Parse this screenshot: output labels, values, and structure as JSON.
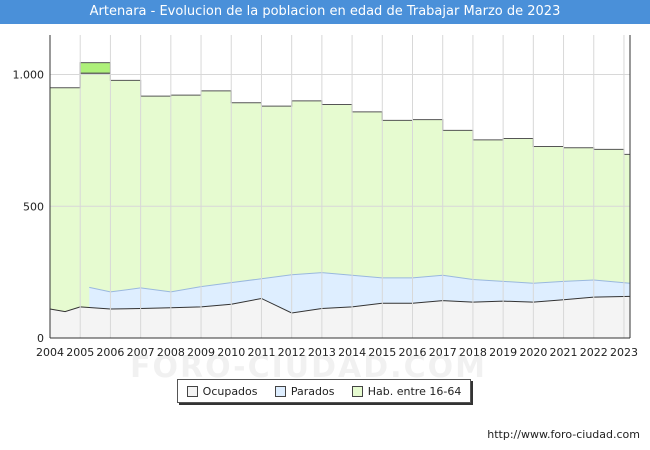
{
  "header": {
    "title": "Artenara - Evolucion de la poblacion en edad de Trabajar Marzo de 2023"
  },
  "footer": {
    "url": "http://www.foro-ciudad.com"
  },
  "watermark": {
    "text": "FORO-CIUDAD.COM"
  },
  "colors": {
    "title_bg": "#4a90d9",
    "hab_fill": "#e6fbd0",
    "hab_line": "#555555",
    "hab_spike_fill": "#aef07a",
    "parados_fill": "#deeeff",
    "ocupados_fill": "#f4f4f4",
    "ocupados_line": "#333333",
    "parados_line": "#9ab8de",
    "grid": "#d8d8d8"
  },
  "legend": [
    {
      "label": "Ocupados",
      "color": "#f4f4f4"
    },
    {
      "label": "Parados",
      "color": "#deeeff"
    },
    {
      "label": "Hab. entre 16-64",
      "color": "#e6fbd0"
    }
  ],
  "chart_data": {
    "type": "area",
    "title": "Artenara - Evolucion de la poblacion en edad de Trabajar Marzo de 2023",
    "xlabel": "",
    "ylabel": "",
    "xlim": [
      2004,
      2023.2
    ],
    "ylim": [
      0,
      1150
    ],
    "x_ticks": [
      "2004",
      "2005",
      "2006",
      "2007",
      "2008",
      "2009",
      "2010",
      "2011",
      "2012",
      "2013",
      "2014",
      "2015",
      "2016",
      "2017",
      "2018",
      "2019",
      "2020",
      "2021",
      "2022",
      "2023"
    ],
    "y_ticks": [
      {
        "value": 0,
        "label": "0"
      },
      {
        "value": 500,
        "label": "500"
      },
      {
        "value": 1000,
        "label": "1.000"
      }
    ],
    "grid": true,
    "series": [
      {
        "name": "Hab. entre 16-64",
        "step": true,
        "x": [
          2004,
          2005,
          2006,
          2007,
          2008,
          2009,
          2010,
          2011,
          2012,
          2013,
          2014,
          2015,
          2016,
          2017,
          2018,
          2019,
          2020,
          2021,
          2022,
          2023
        ],
        "values": [
          950,
          1005,
          978,
          918,
          922,
          938,
          893,
          880,
          900,
          886,
          858,
          826,
          829,
          788,
          752,
          757,
          727,
          722,
          716,
          697
        ],
        "spike": {
          "x_start": 2005,
          "x_end": 2006,
          "value": 1045
        }
      },
      {
        "name": "Parados",
        "x_start": 2005.3,
        "x": [
          2005.3,
          2006,
          2007,
          2008,
          2009,
          2010,
          2011,
          2012,
          2013,
          2014,
          2015,
          2016,
          2017,
          2018,
          2019,
          2020,
          2021,
          2022,
          2023.2
        ],
        "values": [
          192,
          175,
          190,
          175,
          195,
          210,
          225,
          240,
          248,
          238,
          228,
          228,
          238,
          222,
          215,
          208,
          215,
          220,
          208
        ]
      },
      {
        "name": "Ocupados",
        "x": [
          2004,
          2004.5,
          2005,
          2006,
          2007,
          2008,
          2009,
          2010,
          2011,
          2012,
          2013,
          2014,
          2015,
          2016,
          2017,
          2018,
          2019,
          2020,
          2021,
          2022,
          2023.2
        ],
        "values": [
          110,
          100,
          118,
          110,
          112,
          115,
          118,
          128,
          150,
          95,
          112,
          118,
          132,
          132,
          142,
          136,
          140,
          136,
          145,
          155,
          158
        ]
      }
    ]
  }
}
